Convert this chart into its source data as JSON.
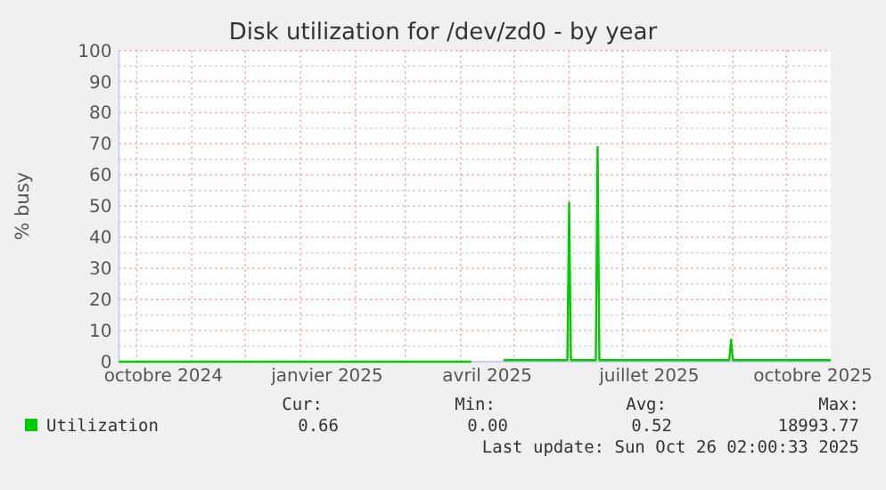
{
  "chart_data": {
    "type": "line",
    "title": "Disk utilization for /dev/zd0 - by year",
    "ylabel": "% busy",
    "x": [
      "2024-09-21",
      "2025-04-07",
      "2025-04-08",
      "2025-04-24",
      "2025-04-25",
      "2025-05-31",
      "2025-06-01",
      "2025-06-02",
      "2025-06-16",
      "2025-06-17",
      "2025-06-18",
      "2025-08-30",
      "2025-08-31",
      "2025-09-01",
      "2025-10-26"
    ],
    "series": [
      {
        "name": "Utilization",
        "color": "#00cc00",
        "values": [
          0,
          0,
          null,
          null,
          0.5,
          0.5,
          51,
          0.5,
          0.5,
          69,
          0.5,
          0.5,
          7,
          0.5,
          0.5
        ]
      }
    ],
    "xlim": [
      "2024-09-21",
      "2025-10-26"
    ],
    "xticks": [
      {
        "value": "2024-10-01",
        "label": null
      },
      {
        "value": "2024-10-16",
        "label": "octobre 2024"
      },
      {
        "value": "2024-11-01",
        "label": null
      },
      {
        "value": "2024-12-01",
        "label": null
      },
      {
        "value": "2025-01-01",
        "label": null
      },
      {
        "value": "2025-01-16",
        "label": "janvier 2025"
      },
      {
        "value": "2025-02-01",
        "label": null
      },
      {
        "value": "2025-03-01",
        "label": null
      },
      {
        "value": "2025-04-01",
        "label": null
      },
      {
        "value": "2025-04-16",
        "label": "avril 2025"
      },
      {
        "value": "2025-05-01",
        "label": null
      },
      {
        "value": "2025-06-01",
        "label": null
      },
      {
        "value": "2025-07-01",
        "label": null
      },
      {
        "value": "2025-07-16",
        "label": "juillet 2025"
      },
      {
        "value": "2025-08-01",
        "label": null
      },
      {
        "value": "2025-09-01",
        "label": null
      },
      {
        "value": "2025-10-01",
        "label": null
      },
      {
        "value": "2025-10-16",
        "label": "octobre 2025"
      }
    ],
    "ylim": [
      0,
      100
    ],
    "yticks": [
      0,
      {
        "value": 5,
        "label": null
      },
      10,
      {
        "value": 15,
        "label": null
      },
      20,
      {
        "value": 25,
        "label": null
      },
      30,
      {
        "value": 35,
        "label": null
      },
      40,
      {
        "value": 45,
        "label": null
      },
      50,
      {
        "value": 55,
        "label": null
      },
      60,
      {
        "value": 65,
        "label": null
      },
      70,
      {
        "value": 75,
        "label": null
      },
      80,
      {
        "value": 85,
        "label": null
      },
      90,
      {
        "value": 95,
        "label": null
      },
      100
    ],
    "grid": true,
    "legend": "bottom",
    "marker": "none",
    "line_style": "solid",
    "annotations": [
      "Cur:",
      "Min:",
      "Avg:",
      "Max:",
      "0.66",
      "0.00",
      "0.52",
      "18993.77",
      "Last update: Sun Oct 26 02:00:33 2025"
    ]
  }
}
